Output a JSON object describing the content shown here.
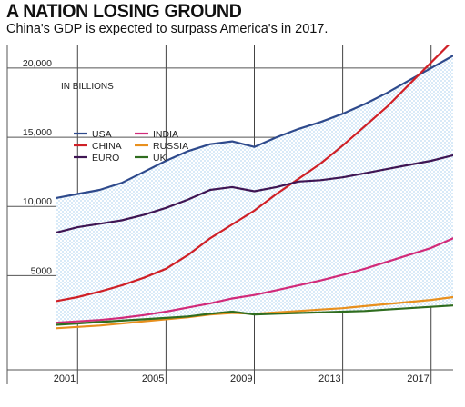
{
  "chart_data": {
    "type": "line",
    "title": "A NATION LOSING GROUND",
    "subtitle": "China's GDP is expected to surpass America's in 2017.",
    "unit_label": "IN BILLIONS",
    "xlabel": "",
    "ylabel": "",
    "x": [
      2000,
      2001,
      2002,
      2003,
      2004,
      2005,
      2006,
      2007,
      2008,
      2009,
      2010,
      2011,
      2012,
      2013,
      2014,
      2015,
      2016,
      2017,
      2018
    ],
    "x_ticks": [
      2001,
      2005,
      2009,
      2013,
      2017
    ],
    "x_tick_labels": [
      "2001",
      "2005",
      "2009",
      "2013",
      "2017"
    ],
    "y_ticks": [
      5000,
      10000,
      15000,
      20000
    ],
    "y_tick_labels": [
      "5000",
      "10,000",
      "15,000",
      "20,000"
    ],
    "xlim": [
      2000,
      2018
    ],
    "ylim": [
      -1800,
      21700
    ],
    "grid": true,
    "legend_position": "top-left",
    "shaded_region": {
      "between": [
        "USA",
        "UK"
      ],
      "color": "#dbeefa"
    },
    "series": [
      {
        "name": "USA",
        "color": "#2e4a8c",
        "values": [
          10600,
          10900,
          11200,
          11700,
          12500,
          13300,
          14000,
          14500,
          14700,
          14300,
          15000,
          15600,
          16100,
          16700,
          17400,
          18200,
          19100,
          20000,
          20900
        ]
      },
      {
        "name": "CHINA",
        "color": "#cf2027",
        "values": [
          3150,
          3450,
          3850,
          4300,
          4850,
          5500,
          6500,
          7700,
          8700,
          9700,
          10900,
          12000,
          13100,
          14400,
          15800,
          17200,
          18800,
          20400,
          22000
        ]
      },
      {
        "name": "EURO",
        "color": "#3f1654",
        "values": [
          8100,
          8500,
          8750,
          9000,
          9400,
          9900,
          10500,
          11200,
          11400,
          11100,
          11400,
          11800,
          11900,
          12100,
          12400,
          12700,
          13000,
          13300,
          13700
        ]
      },
      {
        "name": "INDIA",
        "color": "#d12b7a",
        "values": [
          1600,
          1700,
          1800,
          1950,
          2150,
          2400,
          2700,
          3000,
          3350,
          3600,
          3950,
          4300,
          4650,
          5050,
          5500,
          6000,
          6500,
          7000,
          7700
        ]
      },
      {
        "name": "RUSSIA",
        "color": "#e8901e",
        "values": [
          1200,
          1300,
          1400,
          1550,
          1700,
          1850,
          2000,
          2200,
          2300,
          2250,
          2350,
          2450,
          2550,
          2650,
          2800,
          2950,
          3100,
          3250,
          3450
        ]
      },
      {
        "name": "UK",
        "color": "#2f6d1f",
        "values": [
          1450,
          1550,
          1650,
          1750,
          1850,
          1950,
          2050,
          2250,
          2400,
          2200,
          2250,
          2300,
          2350,
          2400,
          2450,
          2550,
          2650,
          2750,
          2850
        ]
      }
    ]
  }
}
